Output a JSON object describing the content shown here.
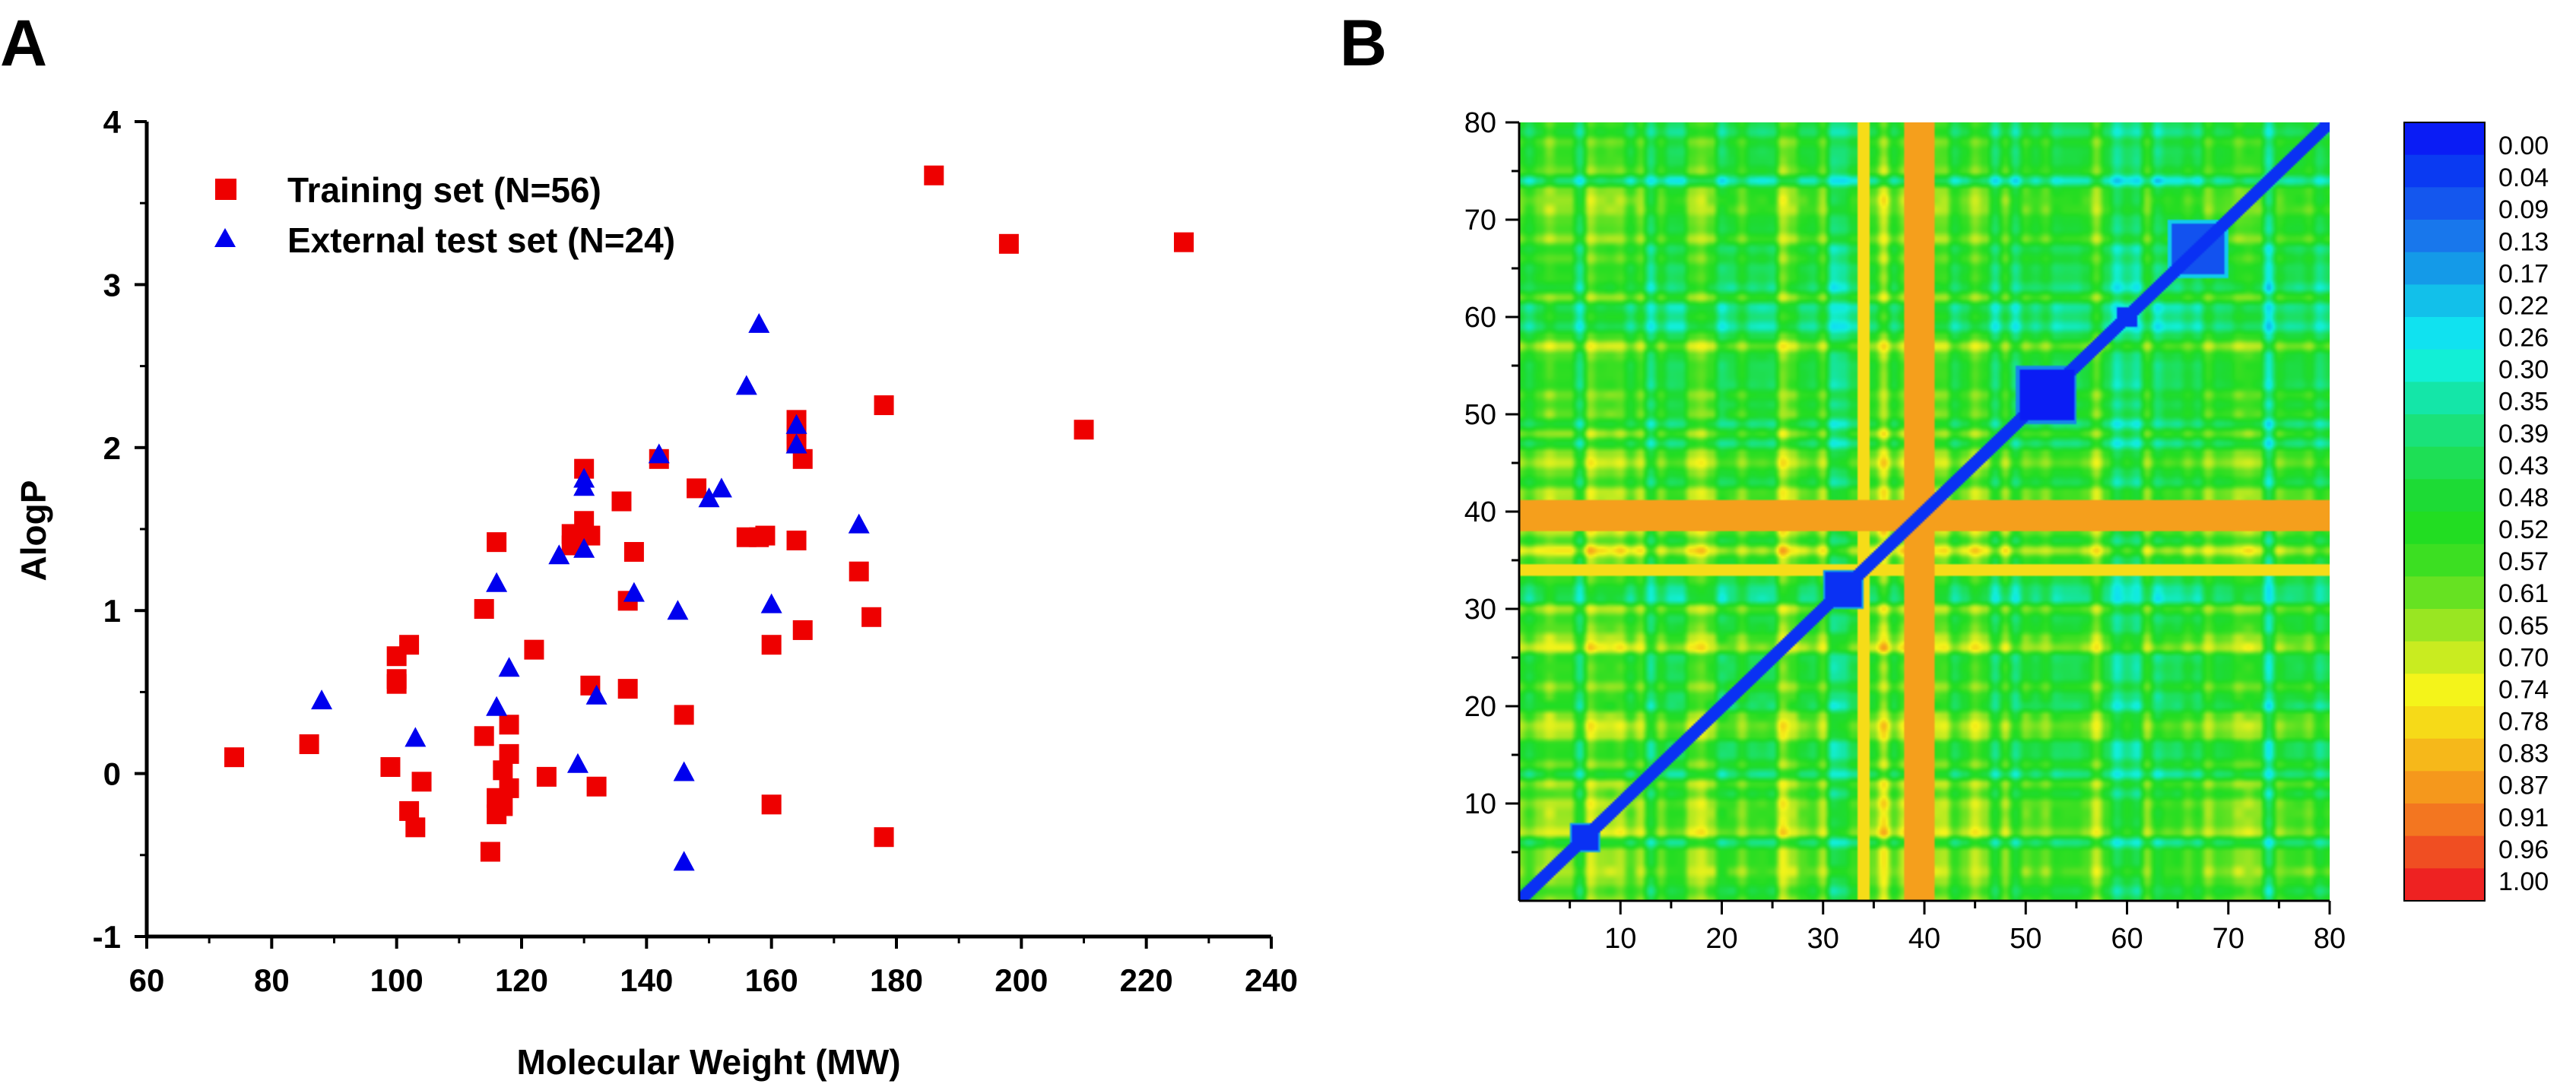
{
  "chart_data": [
    {
      "panel": "A",
      "type": "scatter",
      "title": "",
      "xlabel": "Molecular Weight (MW)",
      "ylabel": "AlogP",
      "xlim": [
        60,
        240
      ],
      "ylim": [
        -1,
        4
      ],
      "xticks": [
        60,
        80,
        100,
        120,
        140,
        160,
        180,
        200,
        220,
        240
      ],
      "yticks": [
        -1,
        0,
        1,
        2,
        3,
        4
      ],
      "legend_position": "top-left",
      "series": [
        {
          "name": "Training set (N=56)",
          "marker": "square",
          "color": "#ee0000",
          "points": [
            [
              74,
              0.1
            ],
            [
              86,
              0.18
            ],
            [
              99,
              0.04
            ],
            [
              100,
              0.55
            ],
            [
              100,
              0.72
            ],
            [
              100,
              0.58
            ],
            [
              102,
              0.79
            ],
            [
              102,
              -0.23
            ],
            [
              103,
              -0.33
            ],
            [
              104,
              -0.05
            ],
            [
              114,
              1.01
            ],
            [
              114,
              0.23
            ],
            [
              115,
              -0.48
            ],
            [
              116,
              1.42
            ],
            [
              116,
              -0.15
            ],
            [
              116,
              -0.25
            ],
            [
              117,
              -0.2
            ],
            [
              117,
              0.02
            ],
            [
              118,
              0.3
            ],
            [
              118,
              0.12
            ],
            [
              118,
              -0.09
            ],
            [
              122,
              0.76
            ],
            [
              124,
              -0.02
            ],
            [
              128,
              1.47
            ],
            [
              128,
              1.4
            ],
            [
              130,
              1.87
            ],
            [
              130,
              1.55
            ],
            [
              131,
              0.54
            ],
            [
              132,
              -0.08
            ],
            [
              136,
              1.67
            ],
            [
              137,
              1.06
            ],
            [
              137,
              0.52
            ],
            [
              142,
              1.93
            ],
            [
              146,
              0.36
            ],
            [
              148,
              1.75
            ],
            [
              156,
              1.45
            ],
            [
              158,
              1.45
            ],
            [
              159,
              1.46
            ],
            [
              160,
              0.79
            ],
            [
              160,
              -0.19
            ],
            [
              164,
              2.17
            ],
            [
              164,
              2.08
            ],
            [
              164,
              2.03
            ],
            [
              164,
              1.43
            ],
            [
              165,
              1.93
            ],
            [
              165,
              0.88
            ],
            [
              174,
              1.24
            ],
            [
              178,
              2.26
            ],
            [
              178,
              -0.39
            ],
            [
              186,
              3.67
            ],
            [
              198,
              3.25
            ],
            [
              210,
              2.11
            ],
            [
              226,
              3.26
            ],
            [
              176,
              0.96
            ],
            [
              131,
              1.46
            ],
            [
              138,
              1.36
            ]
          ]
        },
        {
          "name": "External test set (N=24)",
          "marker": "triangle",
          "color": "#0000ee",
          "points": [
            [
              88,
              0.45
            ],
            [
              103,
              0.22
            ],
            [
              116,
              1.17
            ],
            [
              116,
              0.41
            ],
            [
              118,
              0.65
            ],
            [
              126,
              1.34
            ],
            [
              129,
              0.06
            ],
            [
              130,
              1.81
            ],
            [
              130,
              1.76
            ],
            [
              130,
              1.38
            ],
            [
              132,
              0.48
            ],
            [
              138,
              1.11
            ],
            [
              142,
              1.96
            ],
            [
              145,
              1.0
            ],
            [
              146,
              0.01
            ],
            [
              146,
              -0.54
            ],
            [
              150,
              1.69
            ],
            [
              156,
              2.38
            ],
            [
              158,
              2.76
            ],
            [
              160,
              1.04
            ],
            [
              164,
              2.14
            ],
            [
              164,
              2.02
            ],
            [
              174,
              1.53
            ],
            [
              152,
              1.75
            ]
          ]
        }
      ]
    },
    {
      "panel": "B",
      "type": "heatmap",
      "title": "",
      "xlabel": "",
      "ylabel": "",
      "xlim": [
        0,
        80
      ],
      "ylim": [
        0,
        80
      ],
      "xticks": [
        10,
        20,
        30,
        40,
        50,
        60,
        70,
        80
      ],
      "yticks": [
        10,
        20,
        30,
        40,
        50,
        60,
        70,
        80
      ],
      "n_compounds": 80,
      "blocks": [
        {
          "start": 49,
          "end": 55,
          "value": 0.0
        },
        {
          "start": 64,
          "end": 70,
          "value": 0.08
        },
        {
          "start": 30,
          "end": 34,
          "value": 0.03
        },
        {
          "start": 5,
          "end": 8,
          "value": 0.03
        },
        {
          "start": 59,
          "end": 61,
          "value": 0.03
        }
      ],
      "hot_lines": [
        39,
        40,
        41
      ],
      "colorbar": {
        "labels": [
          "0.00",
          "0.04",
          "0.09",
          "0.13",
          "0.17",
          "0.22",
          "0.26",
          "0.30",
          "0.35",
          "0.39",
          "0.43",
          "0.48",
          "0.52",
          "0.57",
          "0.61",
          "0.65",
          "0.70",
          "0.74",
          "0.78",
          "0.83",
          "0.87",
          "0.91",
          "0.96",
          "1.00"
        ],
        "colors": [
          "#0a1cf5",
          "#0a3af2",
          "#1457ee",
          "#1877ec",
          "#149ae8",
          "#12c0ea",
          "#10e2f0",
          "#12efd6",
          "#14e6a8",
          "#1ae27a",
          "#1edf55",
          "#1ddb35",
          "#22dd22",
          "#3cdf22",
          "#66e222",
          "#99e622",
          "#c9ec20",
          "#f4f41a",
          "#f6da18",
          "#f6b81a",
          "#f5981c",
          "#f37620",
          "#f04e22",
          "#ee2222"
        ]
      }
    }
  ]
}
